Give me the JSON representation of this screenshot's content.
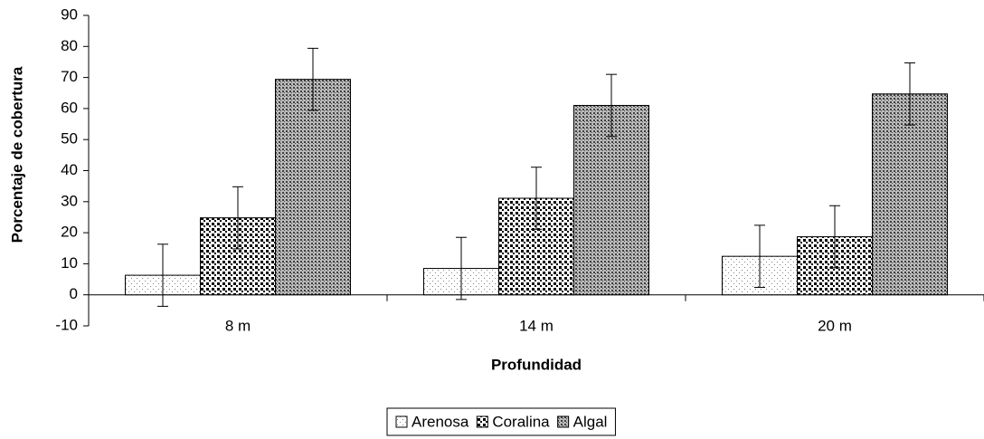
{
  "chart_data": {
    "type": "bar",
    "xlabel": "Profundidad",
    "ylabel": "Porcentaje de cobertura",
    "categories": [
      "8 m",
      "14 m",
      "20 m"
    ],
    "series": [
      {
        "name": "Arenosa",
        "color": "#808080",
        "values": [
          6.3,
          8.5,
          12.4
        ],
        "errors": [
          10,
          10,
          10
        ]
      },
      {
        "name": "Coralina",
        "color": "#000000",
        "values": [
          24.8,
          31.1,
          18.7
        ],
        "errors": [
          10,
          10,
          10
        ]
      },
      {
        "name": "Algal",
        "color": "#404040",
        "values": [
          69.4,
          61,
          64.7
        ],
        "errors": [
          10,
          10,
          10
        ]
      }
    ],
    "ylim": [
      -10,
      90
    ],
    "yticks": [
      -10,
      0,
      10,
      20,
      30,
      40,
      50,
      60,
      70,
      80,
      90
    ],
    "legend": "bottom"
  }
}
